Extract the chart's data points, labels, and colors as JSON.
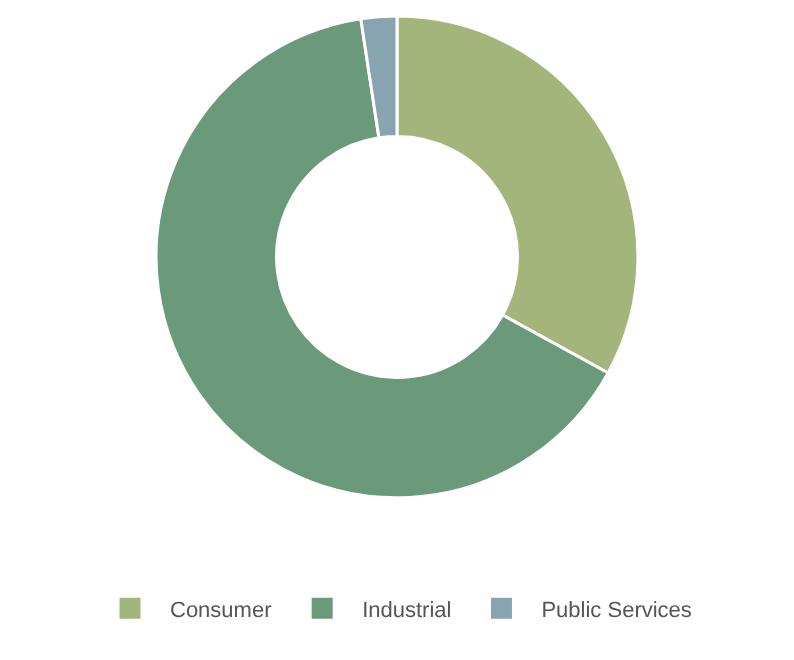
{
  "chart_data": {
    "type": "donut",
    "categories": [
      "Consumer",
      "Industrial",
      "Public Services"
    ],
    "values": [
      33,
      64.6,
      2.4
    ],
    "colors": [
      "#a3b57a",
      "#6a9a7a",
      "#88a4b0"
    ],
    "legend": "bottom"
  }
}
